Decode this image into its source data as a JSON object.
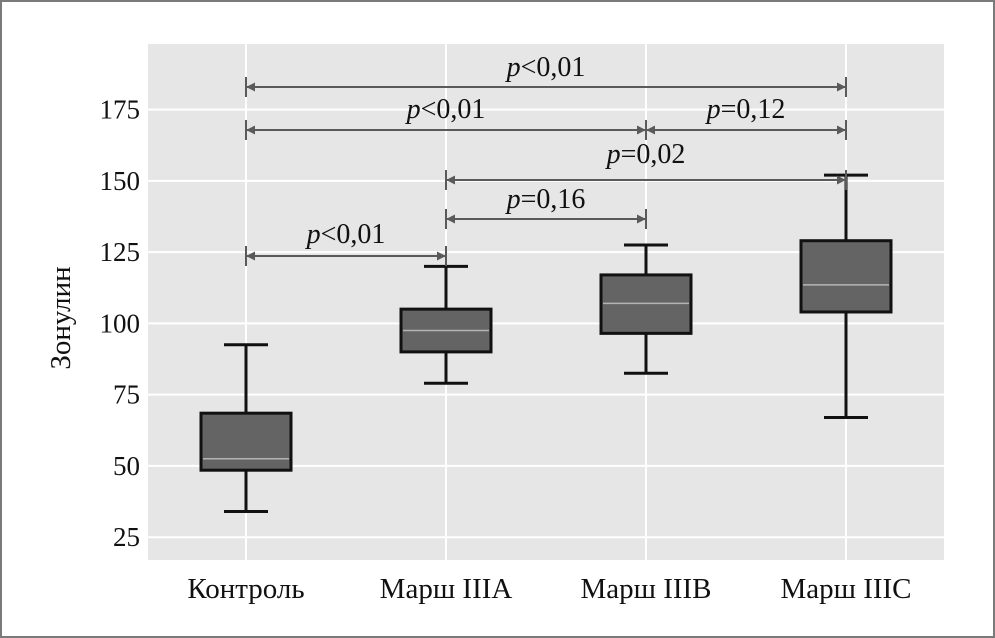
{
  "chart_data": {
    "type": "box",
    "title": "",
    "xlabel": "",
    "ylabel": "Зонулин",
    "categories": [
      "Контроль",
      "Марш IIIA",
      "Марш IIIB",
      "Марш IIIC"
    ],
    "boxes": [
      {
        "category": "Контроль",
        "whisker_low": 34,
        "q1": 48.5,
        "median": 52.5,
        "q3": 68.5,
        "whisker_high": 92.5
      },
      {
        "category": "Марш IIIA",
        "whisker_low": 79,
        "q1": 90,
        "median": 97.5,
        "q3": 105,
        "whisker_high": 120
      },
      {
        "category": "Марш IIIB",
        "whisker_low": 82.5,
        "q1": 96.5,
        "median": 107,
        "q3": 117,
        "whisker_high": 127.5
      },
      {
        "category": "Марш IIIC",
        "whisker_low": 67,
        "q1": 104,
        "median": 113.5,
        "q3": 129,
        "whisker_high": 152
      }
    ],
    "yticks": [
      25,
      50,
      75,
      100,
      125,
      150,
      175
    ],
    "ylim": [
      17,
      198
    ],
    "grid": true,
    "comparisons": [
      {
        "from": "Контроль",
        "to": "Марш IIIC",
        "p_symbol": "p",
        "p_value": "<0,01"
      },
      {
        "from": "Контроль",
        "to": "Марш IIIB",
        "p_symbol": "p",
        "p_value": "<0,01"
      },
      {
        "from": "Марш IIIB",
        "to": "Марш IIIC",
        "p_symbol": "p",
        "p_value": "=0,12"
      },
      {
        "from": "Марш IIIA",
        "to": "Марш IIIC",
        "p_symbol": "p",
        "p_value": "=0,02"
      },
      {
        "from": "Марш IIIA",
        "to": "Марш IIIB",
        "p_symbol": "p",
        "p_value": "=0,16"
      },
      {
        "from": "Контроль",
        "to": "Марш IIIA",
        "p_symbol": "p",
        "p_value": "<0,01"
      }
    ],
    "colors": {
      "plot_background": "#e6e6e6",
      "grid": "#ffffff",
      "box_fill": "#646464",
      "box_edge": "#111111",
      "median": "#b4b4b4",
      "whisker": "#111111",
      "annotation_arrow": "#5a5a5a"
    }
  }
}
